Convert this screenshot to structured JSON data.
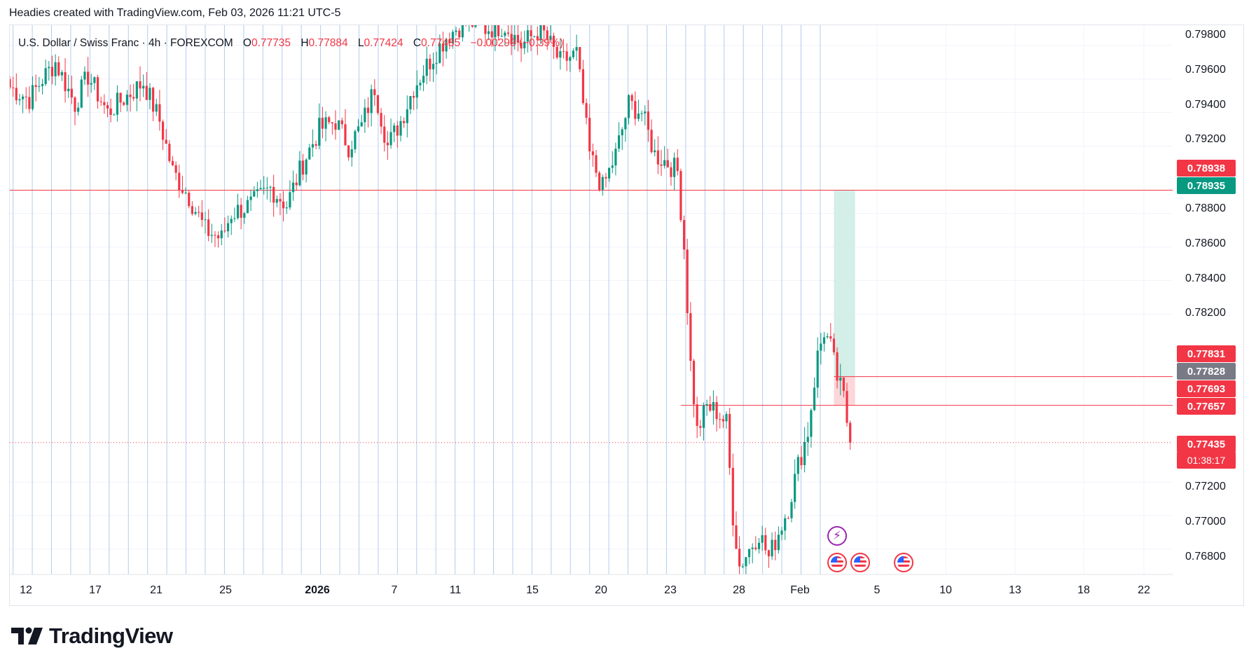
{
  "caption": "Headies created with TradingView.com, Feb 03, 2026 11:21 UTC-5",
  "legend": {
    "symbol": "U.S. Dollar / Swiss Franc · 4h · FOREXCOM",
    "o_label": "O",
    "o_value": "0.77735",
    "h_label": "H",
    "h_value": "0.77884",
    "l_label": "L",
    "l_value": "0.77424",
    "c_label": "C",
    "c_value": "0.77435",
    "change": "−0.00299 (−0.39%)"
  },
  "price_axis": {
    "ticks": [
      "0.79800",
      "0.79600",
      "0.79400",
      "0.79200",
      "0.78800",
      "0.78600",
      "0.78400",
      "0.78200",
      "0.77200",
      "0.77000",
      "0.76800"
    ],
    "badges": {
      "top_red": "0.78938",
      "top_green": "0.78935",
      "entry_red": "0.77831",
      "entry_gray": "0.77828",
      "stop_red1": "0.77693",
      "stop_red2": "0.77657",
      "last_price": "0.77435",
      "countdown": "01:38:17"
    }
  },
  "time_axis": {
    "ticks": [
      "12",
      "17",
      "21",
      "25",
      "2026",
      "7",
      "11",
      "15",
      "20",
      "23",
      "28",
      "Feb",
      "5",
      "10",
      "13",
      "18",
      "22"
    ]
  },
  "events": [
    {
      "icon": "lightning-icon"
    },
    {
      "icon": "us-flag-icon"
    },
    {
      "icon": "us-flag-icon"
    },
    {
      "icon": "us-flag-icon"
    }
  ],
  "logo": {
    "text": "TradingView"
  },
  "colors": {
    "up": "#089981",
    "down": "#f23645",
    "grid": "#f0f3fa",
    "session": "#b2ccf0",
    "profit_zone": "#d4eee8",
    "loss_zone": "#fbd7da"
  },
  "chart_data": {
    "type": "candlestick",
    "title": "U.S. Dollar / Swiss Franc · 4h · FOREXCOM",
    "timeframe": "4h",
    "ylim": [
      0.7665,
      0.7992
    ],
    "x_ticks": [
      "12",
      "17",
      "21",
      "25",
      "2026",
      "7",
      "11",
      "15",
      "20",
      "23",
      "28",
      "Feb",
      "5",
      "10",
      "13",
      "18",
      "22"
    ],
    "y_ticks": [
      0.798,
      0.796,
      0.794,
      0.792,
      0.788,
      0.786,
      0.784,
      0.782,
      0.772,
      0.77,
      0.768
    ],
    "anchors": [
      [
        0,
        0.7955
      ],
      [
        6,
        0.7948
      ],
      [
        10,
        0.796
      ],
      [
        14,
        0.797
      ],
      [
        20,
        0.7945
      ],
      [
        24,
        0.7962
      ],
      [
        30,
        0.794
      ],
      [
        36,
        0.795
      ],
      [
        41,
        0.7958
      ],
      [
        46,
        0.7935
      ],
      [
        50,
        0.7905
      ],
      [
        55,
        0.789
      ],
      [
        60,
        0.787
      ],
      [
        65,
        0.7865
      ],
      [
        68,
        0.788
      ],
      [
        74,
        0.7885
      ],
      [
        80,
        0.7895
      ],
      [
        85,
        0.7885
      ],
      [
        90,
        0.791
      ],
      [
        95,
        0.793
      ],
      [
        100,
        0.7935
      ],
      [
        104,
        0.792
      ],
      [
        108,
        0.7932
      ],
      [
        112,
        0.7955
      ],
      [
        116,
        0.792
      ],
      [
        120,
        0.7935
      ],
      [
        124,
        0.7955
      ],
      [
        128,
        0.7968
      ],
      [
        134,
        0.7985
      ],
      [
        140,
        0.7995
      ],
      [
        146,
        0.799
      ],
      [
        152,
        0.7992
      ],
      [
        157,
        0.798
      ],
      [
        163,
        0.799
      ],
      [
        169,
        0.797
      ],
      [
        174,
        0.7975
      ],
      [
        178,
        0.7915
      ],
      [
        182,
        0.7895
      ],
      [
        186,
        0.7915
      ],
      [
        190,
        0.7945
      ],
      [
        194,
        0.794
      ],
      [
        198,
        0.7915
      ],
      [
        202,
        0.791
      ],
      [
        205,
        0.7905
      ],
      [
        207,
        0.786
      ],
      [
        209,
        0.779
      ],
      [
        211,
        0.775
      ],
      [
        214,
        0.7765
      ],
      [
        217,
        0.7762
      ],
      [
        220,
        0.7755
      ],
      [
        222,
        0.77
      ],
      [
        224,
        0.767
      ],
      [
        227,
        0.768
      ],
      [
        230,
        0.769
      ],
      [
        233,
        0.7675
      ],
      [
        236,
        0.769
      ],
      [
        239,
        0.7705
      ],
      [
        242,
        0.773
      ],
      [
        245,
        0.775
      ],
      [
        248,
        0.7795
      ],
      [
        250,
        0.781
      ],
      [
        252,
        0.78
      ],
      [
        254,
        0.7782
      ],
      [
        256,
        0.777
      ],
      [
        258,
        0.7743
      ]
    ],
    "last_price": 0.77435,
    "horizontal_lines": [
      0.78938,
      0.77828,
      0.77657
    ],
    "position": {
      "type": "long",
      "entry": 0.77828,
      "target": 0.78935,
      "stop": 0.77657
    }
  }
}
